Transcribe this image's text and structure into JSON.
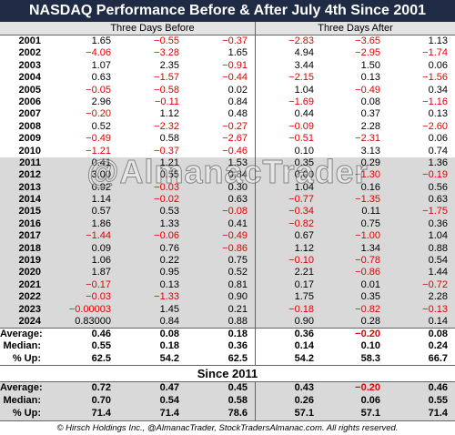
{
  "title": "NASDAQ Performance Before & After July 4th Since 2001",
  "header": {
    "before": "Three Days Before",
    "after": "Three Days After"
  },
  "table": {
    "rows": [
      {
        "year": "2001",
        "values": [
          "1.65",
          "−0.55",
          "−0.37",
          "−2.83",
          "−3.65",
          "1.13"
        ]
      },
      {
        "year": "2002",
        "values": [
          "−4.06",
          "−3.28",
          "1.65",
          "4.94",
          "−2.95",
          "−1.74"
        ]
      },
      {
        "year": "2003",
        "values": [
          "1.07",
          "2.35",
          "−0.91",
          "3.44",
          "1.50",
          "0.06"
        ]
      },
      {
        "year": "2004",
        "values": [
          "0.63",
          "−1.57",
          "−0.44",
          "−2.15",
          "0.13",
          "−1.56"
        ]
      },
      {
        "year": "2005",
        "values": [
          "−0.05",
          "−0.58",
          "0.02",
          "1.04",
          "−0.49",
          "0.34"
        ]
      },
      {
        "year": "2006",
        "values": [
          "2.96",
          "−0.11",
          "0.84",
          "−1.69",
          "0.08",
          "−1.16"
        ]
      },
      {
        "year": "2007",
        "values": [
          "−0.20",
          "1.12",
          "0.48",
          "0.44",
          "0.37",
          "0.13"
        ]
      },
      {
        "year": "2008",
        "values": [
          "0.52",
          "−2.32",
          "−0.27",
          "−0.09",
          "2.28",
          "−2.60"
        ]
      },
      {
        "year": "2009",
        "values": [
          "−0.49",
          "0.58",
          "−2.67",
          "−0.51",
          "−2.31",
          "0.06"
        ]
      },
      {
        "year": "2010",
        "values": [
          "−1.21",
          "−0.37",
          "−0.46",
          "0.10",
          "3.13",
          "0.74"
        ]
      },
      {
        "year": "2011",
        "values": [
          "0.41",
          "1.21",
          "1.53",
          "0.35",
          "0.29",
          "1.36"
        ]
      },
      {
        "year": "2012",
        "values": [
          "3.00",
          "0.55",
          "0.84",
          "0.00",
          "−1.30",
          "−0.19"
        ]
      },
      {
        "year": "2013",
        "values": [
          "0.92",
          "−0.03",
          "0.30",
          "1.04",
          "0.16",
          "0.56"
        ]
      },
      {
        "year": "2014",
        "values": [
          "1.14",
          "−0.02",
          "0.63",
          "−0.77",
          "−1.35",
          "0.63"
        ]
      },
      {
        "year": "2015",
        "values": [
          "0.57",
          "0.53",
          "−0.08",
          "−0.34",
          "0.11",
          "−1.75"
        ]
      },
      {
        "year": "2016",
        "values": [
          "1.86",
          "1.33",
          "0.41",
          "−0.82",
          "0.75",
          "0.36"
        ]
      },
      {
        "year": "2017",
        "values": [
          "−1.44",
          "−0.06",
          "−0.49",
          "0.67",
          "−1.00",
          "1.04"
        ]
      },
      {
        "year": "2018",
        "values": [
          "0.09",
          "0.76",
          "−0.86",
          "1.12",
          "1.34",
          "0.88"
        ]
      },
      {
        "year": "2019",
        "values": [
          "1.06",
          "0.22",
          "0.75",
          "−0.10",
          "−0.78",
          "0.54"
        ]
      },
      {
        "year": "2020",
        "values": [
          "1.87",
          "0.95",
          "0.52",
          "2.21",
          "−0.86",
          "1.44"
        ]
      },
      {
        "year": "2021",
        "values": [
          "−0.17",
          "0.13",
          "0.81",
          "0.17",
          "0.01",
          "−0.72"
        ]
      },
      {
        "year": "2022",
        "values": [
          "−0.03",
          "−1.33",
          "0.90",
          "1.75",
          "0.35",
          "2.28"
        ]
      },
      {
        "year": "2023",
        "values": [
          "−0.00003",
          "1.45",
          "0.21",
          "−0.18",
          "−0.82",
          "−0.13"
        ]
      },
      {
        "year": "2024",
        "values": [
          "0.83000",
          "0.84",
          "0.88",
          "0.90",
          "0.28",
          "0.14"
        ]
      }
    ]
  },
  "summary": {
    "rows": [
      {
        "label": "Average:",
        "values": [
          "0.46",
          "0.08",
          "0.18",
          "0.36",
          "−0.20",
          "0.08"
        ]
      },
      {
        "label": "Median:",
        "values": [
          "0.55",
          "0.18",
          "0.36",
          "0.14",
          "0.10",
          "0.24"
        ]
      },
      {
        "label": "% Up:",
        "values": [
          "62.5",
          "54.2",
          "62.5",
          "54.2",
          "58.3",
          "66.7"
        ]
      }
    ]
  },
  "since": {
    "title": "Since 2011",
    "rows": [
      {
        "label": "Average:",
        "values": [
          "0.72",
          "0.47",
          "0.45",
          "0.43",
          "−0.20",
          "0.46"
        ]
      },
      {
        "label": "Median:",
        "values": [
          "0.70",
          "0.54",
          "0.58",
          "0.26",
          "0.06",
          "0.55"
        ]
      },
      {
        "label": "% Up:",
        "values": [
          "71.4",
          "71.4",
          "78.6",
          "57.1",
          "57.1",
          "71.4"
        ]
      }
    ]
  },
  "watermark": "@AlmanacTrader",
  "footer": "© Hirsch Holdings Inc., @AlmanacTrader, StockTradersAlmanac.com. All rights reserved."
}
